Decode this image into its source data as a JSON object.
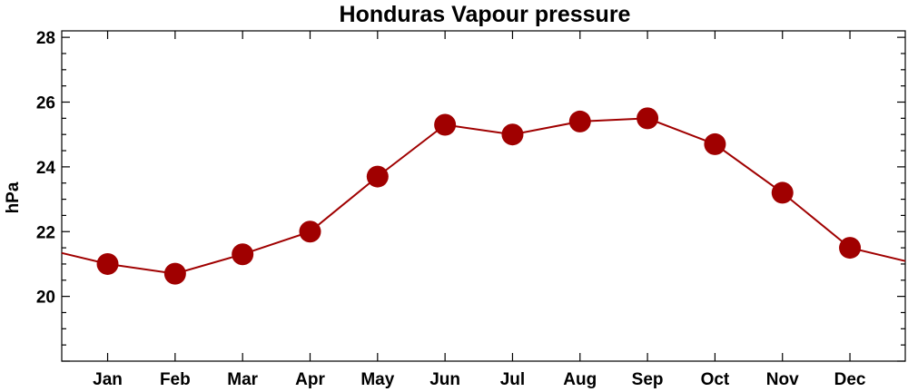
{
  "chart_data": {
    "type": "line",
    "title": "Honduras Vapour pressure",
    "xlabel": "",
    "ylabel": "hPa",
    "categories": [
      "Jan",
      "Feb",
      "Mar",
      "Apr",
      "May",
      "Jun",
      "Jul",
      "Aug",
      "Sep",
      "Oct",
      "Nov",
      "Dec"
    ],
    "values": [
      21.0,
      20.7,
      21.3,
      22.0,
      23.7,
      25.3,
      25.0,
      25.4,
      25.5,
      24.7,
      23.2,
      21.5
    ],
    "ylim": [
      18.0,
      28.2
    ],
    "yticks": [
      20,
      22,
      24,
      26,
      28
    ],
    "grid": false,
    "legend": "none",
    "colors": {
      "line": "#a00000",
      "marker": "#a00000"
    }
  }
}
